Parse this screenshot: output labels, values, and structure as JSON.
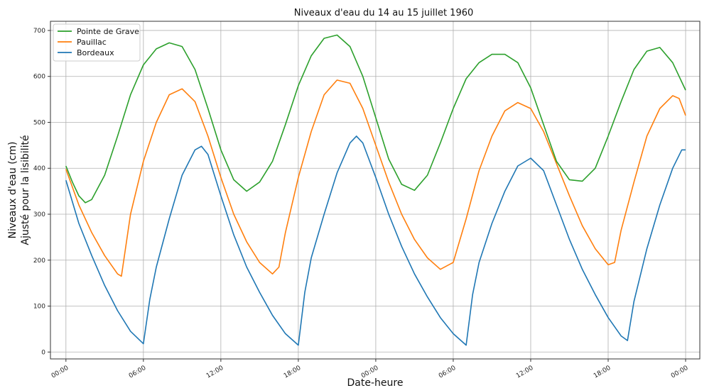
{
  "chart_data": {
    "type": "line",
    "title": "Niveaux d'eau du 14 au 15 juillet 1960",
    "xlabel": "Date-heure",
    "ylabel_lines": [
      "Niveaux d'eau (cm)",
      "Ajusté pour la lisibilité"
    ],
    "x_start": "1960-07-14 00:00",
    "xlim_hours": [
      -1.2,
      49.1
    ],
    "ylim": [
      -15,
      720
    ],
    "x_ticks": [
      {
        "x": 0,
        "label": "00:00"
      },
      {
        "x": 6,
        "label": "06:00"
      },
      {
        "x": 12,
        "label": "12:00"
      },
      {
        "x": 18,
        "label": "18:00"
      },
      {
        "x": 24,
        "label": "00:00"
      },
      {
        "x": 30,
        "label": "06:00"
      },
      {
        "x": 36,
        "label": "12:00"
      },
      {
        "x": 42,
        "label": "18:00"
      },
      {
        "x": 48,
        "label": "00:00"
      }
    ],
    "y_ticks": [
      0,
      100,
      200,
      300,
      400,
      500,
      600,
      700
    ],
    "grid": true,
    "legend_position": "top-left",
    "series": [
      {
        "name": "Pointe de Grave",
        "color": "#2ca02c",
        "points": [
          [
            0,
            405
          ],
          [
            0.5,
            370
          ],
          [
            1,
            340
          ],
          [
            1.5,
            325
          ],
          [
            2,
            332
          ],
          [
            3,
            385
          ],
          [
            4,
            470
          ],
          [
            5,
            560
          ],
          [
            6,
            625
          ],
          [
            7,
            660
          ],
          [
            8,
            673
          ],
          [
            9,
            665
          ],
          [
            10,
            615
          ],
          [
            11,
            530
          ],
          [
            12,
            440
          ],
          [
            13,
            375
          ],
          [
            14,
            350
          ],
          [
            15,
            370
          ],
          [
            16,
            415
          ],
          [
            17,
            495
          ],
          [
            18,
            580
          ],
          [
            19,
            645
          ],
          [
            20,
            683
          ],
          [
            21,
            690
          ],
          [
            22,
            665
          ],
          [
            23,
            600
          ],
          [
            24,
            510
          ],
          [
            25,
            420
          ],
          [
            26,
            365
          ],
          [
            27,
            352
          ],
          [
            28,
            385
          ],
          [
            29,
            455
          ],
          [
            30,
            530
          ],
          [
            31,
            595
          ],
          [
            32,
            630
          ],
          [
            33,
            648
          ],
          [
            34,
            648
          ],
          [
            35,
            630
          ],
          [
            36,
            575
          ],
          [
            37,
            495
          ],
          [
            38,
            415
          ],
          [
            39,
            375
          ],
          [
            40,
            372
          ],
          [
            41,
            400
          ],
          [
            42,
            470
          ],
          [
            43,
            545
          ],
          [
            44,
            615
          ],
          [
            45,
            655
          ],
          [
            46,
            663
          ],
          [
            47,
            630
          ],
          [
            48,
            570
          ]
        ]
      },
      {
        "name": "Pauillac",
        "color": "#ff7f0e",
        "points": [
          [
            0,
            398
          ],
          [
            1,
            320
          ],
          [
            2,
            260
          ],
          [
            3,
            210
          ],
          [
            4,
            170
          ],
          [
            4.3,
            165
          ],
          [
            5,
            300
          ],
          [
            6,
            415
          ],
          [
            7,
            500
          ],
          [
            8,
            560
          ],
          [
            9,
            573
          ],
          [
            10,
            545
          ],
          [
            11,
            470
          ],
          [
            12,
            380
          ],
          [
            13,
            300
          ],
          [
            14,
            240
          ],
          [
            15,
            195
          ],
          [
            16,
            170
          ],
          [
            16.5,
            185
          ],
          [
            17,
            260
          ],
          [
            18,
            380
          ],
          [
            19,
            480
          ],
          [
            20,
            560
          ],
          [
            21,
            592
          ],
          [
            22,
            585
          ],
          [
            23,
            530
          ],
          [
            24,
            450
          ],
          [
            25,
            370
          ],
          [
            26,
            300
          ],
          [
            27,
            245
          ],
          [
            28,
            205
          ],
          [
            29,
            180
          ],
          [
            30,
            195
          ],
          [
            31,
            290
          ],
          [
            32,
            395
          ],
          [
            33,
            470
          ],
          [
            34,
            525
          ],
          [
            35,
            543
          ],
          [
            36,
            530
          ],
          [
            37,
            480
          ],
          [
            38,
            410
          ],
          [
            39,
            340
          ],
          [
            40,
            275
          ],
          [
            41,
            225
          ],
          [
            42,
            190
          ],
          [
            42.5,
            195
          ],
          [
            43,
            265
          ],
          [
            44,
            370
          ],
          [
            45,
            470
          ],
          [
            46,
            530
          ],
          [
            47,
            558
          ],
          [
            47.5,
            552
          ],
          [
            48,
            515
          ]
        ]
      },
      {
        "name": "Bordeaux",
        "color": "#1f77b4",
        "points": [
          [
            0,
            374
          ],
          [
            1,
            280
          ],
          [
            2,
            210
          ],
          [
            3,
            145
          ],
          [
            4,
            90
          ],
          [
            5,
            45
          ],
          [
            6,
            18
          ],
          [
            6.5,
            115
          ],
          [
            7,
            185
          ],
          [
            8,
            290
          ],
          [
            9,
            385
          ],
          [
            10,
            440
          ],
          [
            10.5,
            448
          ],
          [
            11,
            430
          ],
          [
            12,
            340
          ],
          [
            13,
            255
          ],
          [
            14,
            185
          ],
          [
            15,
            130
          ],
          [
            16,
            80
          ],
          [
            17,
            40
          ],
          [
            18,
            15
          ],
          [
            18.5,
            130
          ],
          [
            19,
            205
          ],
          [
            20,
            300
          ],
          [
            21,
            390
          ],
          [
            22,
            455
          ],
          [
            22.5,
            470
          ],
          [
            23,
            455
          ],
          [
            24,
            380
          ],
          [
            25,
            300
          ],
          [
            26,
            230
          ],
          [
            27,
            170
          ],
          [
            28,
            120
          ],
          [
            29,
            75
          ],
          [
            30,
            40
          ],
          [
            31,
            15
          ],
          [
            31.5,
            125
          ],
          [
            32,
            195
          ],
          [
            33,
            280
          ],
          [
            34,
            350
          ],
          [
            35,
            405
          ],
          [
            36,
            422
          ],
          [
            37,
            395
          ],
          [
            38,
            320
          ],
          [
            39,
            245
          ],
          [
            40,
            180
          ],
          [
            41,
            125
          ],
          [
            42,
            75
          ],
          [
            43,
            35
          ],
          [
            43.5,
            25
          ],
          [
            44,
            110
          ],
          [
            45,
            225
          ],
          [
            46,
            320
          ],
          [
            47,
            400
          ],
          [
            47.7,
            440
          ],
          [
            48,
            440
          ]
        ]
      }
    ]
  }
}
